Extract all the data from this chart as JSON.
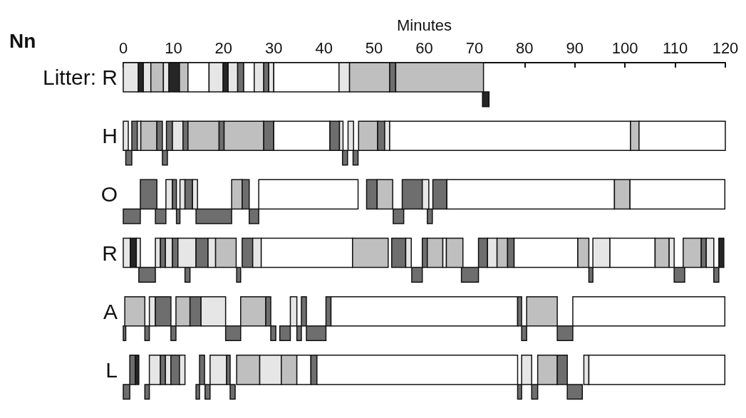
{
  "chart_data": {
    "type": "bar",
    "orientation": "horizontal",
    "title": "Nn",
    "xlabel": "Minutes",
    "categories": [
      "Litter: R",
      null,
      "H",
      null,
      "O",
      null,
      "R",
      null,
      "A",
      null,
      "L",
      null
    ],
    "xlim": [
      0,
      120
    ],
    "xticks": [
      0,
      10,
      20,
      30,
      40,
      50,
      60,
      70,
      80,
      90,
      100,
      110,
      120
    ],
    "series": [
      {
        "base": [
          0,
          71.6,
          0,
          0.5,
          3.4,
          0,
          0,
          3.1,
          0.3,
          0,
          1.3,
          0
        ],
        "values": [
          3,
          1.3,
          1,
          1.2,
          3.3,
          3.4,
          1.4,
          3.3,
          4,
          0.5,
          1.1,
          1.3
        ],
        "colors": [
          "#e6e6e6",
          "#262626",
          "#e6e6e6",
          "#6e6e6e",
          "#6e6e6e",
          "#6e6e6e",
          "#e6e6e6",
          "#6e6e6e",
          "#bfbfbf",
          "#6e6e6e",
          "#6e6e6e",
          "#6e6e6e"
        ]
      },
      {
        "base": [
          3,
          null,
          1.7,
          7.8,
          8.5,
          6.4,
          1.4,
          12.3,
          5.2,
          4.3,
          2.4,
          4.3
        ],
        "values": [
          1,
          null,
          1.1,
          1,
          1.3,
          2.1,
          1.2,
          1,
          1.2,
          0.9,
          0.7,
          0.9
        ],
        "colors": [
          "#262626",
          null,
          "#6e6e6e",
          "#6e6e6e",
          "#e6e6e6",
          "#6e6e6e",
          "#262626",
          "#6e6e6e",
          "#e6e6e6",
          "#6e6e6e",
          "#262626",
          "#6e6e6e"
        ]
      },
      {
        "base": [
          4,
          null,
          2.8,
          43.7,
          9.8,
          10.6,
          2.6,
          22.6,
          6.4,
          9.5,
          5.2,
          14.5
        ],
        "values": [
          1.5,
          null,
          0.7,
          1,
          0.8,
          0.7,
          0.8,
          0.8,
          3.1,
          1,
          2.2,
          0.7
        ],
        "colors": [
          "#e6e6e6",
          null,
          "#e6e6e6",
          "#6e6e6e",
          "#6e6e6e",
          "#6e6e6e",
          "#e6e6e6",
          "#6e6e6e",
          "#6e6e6e",
          "#6e6e6e",
          "#e6e6e6",
          "#6e6e6e"
        ]
      },
      {
        "base": [
          5.5,
          null,
          3.5,
          45.8,
          11.3,
          14.5,
          6.4,
          57.5,
          10.5,
          20.4,
          7.4,
          16.3
        ],
        "values": [
          2.5,
          null,
          3.2,
          1,
          1,
          7.1,
          1,
          2.1,
          2.8,
          3,
          1,
          1
        ],
        "colors": [
          "#bfbfbf",
          null,
          "#bfbfbf",
          "#6e6e6e",
          "#e6e6e6",
          "#6e6e6e",
          "#e6e6e6",
          "#6e6e6e",
          "#bfbfbf",
          "#6e6e6e",
          "#6e6e6e",
          "#6e6e6e"
        ]
      },
      {
        "base": [
          8,
          null,
          6.7,
          null,
          12.3,
          25.1,
          7.4,
          67.4,
          13.3,
          29.4,
          8.4,
          21.3
        ],
        "values": [
          1.1,
          null,
          1.1,
          null,
          1.5,
          1.9,
          1,
          3.4,
          2.2,
          1,
          1.1,
          1
        ],
        "colors": [
          "#e6e6e6",
          null,
          "#6e6e6e",
          null,
          "#6e6e6e",
          "#6e6e6e",
          "#6e6e6e",
          "#6e6e6e",
          "#6e6e6e",
          "#6e6e6e",
          "#e6e6e6",
          "#6e6e6e"
        ]
      },
      {
        "base": [
          9.1,
          null,
          8.6,
          null,
          13.8,
          53.8,
          8.4,
          92.8,
          15.5,
          31.2,
          9.5,
          78.6
        ],
        "values": [
          2.1,
          null,
          1.2,
          null,
          1,
          2.1,
          1.4,
          0.8,
          4.9,
          2.1,
          1.7,
          0.8
        ],
        "colors": [
          "#262626",
          null,
          "#6e6e6e",
          null,
          "#e6e6e6",
          "#6e6e6e",
          "#e6e6e6",
          "#6e6e6e",
          "#e6e6e6",
          "#6e6e6e",
          "#6e6e6e",
          "#6e6e6e"
        ]
      },
      {
        "base": [
          11.2,
          null,
          9.8,
          null,
          21.6,
          60.6,
          9.8,
          109.8,
          23.4,
          34.6,
          11.2,
          81.4
        ],
        "values": [
          1.7,
          null,
          2.1,
          null,
          2.1,
          1,
          1.1,
          2.1,
          5,
          0.9,
          1.1,
          1.2
        ],
        "colors": [
          "#bfbfbf",
          null,
          "#e6e6e6",
          null,
          "#bfbfbf",
          "#6e6e6e",
          "#6e6e6e",
          "#6e6e6e",
          "#bfbfbf",
          "#6e6e6e",
          "#e6e6e6",
          "#6e6e6e"
        ]
      },
      {
        "base": [
          12.9,
          null,
          11.9,
          null,
          23.7,
          null,
          10.9,
          117.7,
          28.4,
          36.5,
          15.2,
          88.5
        ],
        "values": [
          4.2,
          null,
          1,
          null,
          1.4,
          null,
          3.6,
          1,
          1,
          3.9,
          1,
          3
        ],
        "colors": [
          "#ffffff",
          null,
          "#6e6e6e",
          null,
          "#6e6e6e",
          null,
          "#e6e6e6",
          "#6e6e6e",
          "#6e6e6e",
          "#6e6e6e",
          "#6e6e6e",
          "#6e6e6e"
        ]
      },
      {
        "base": [
          17.1,
          null,
          12.9,
          null,
          27,
          null,
          14.5,
          null,
          33.3,
          79.4,
          17.3,
          null
        ],
        "values": [
          2.8,
          null,
          6.2,
          null,
          19.8,
          null,
          2.4,
          null,
          1.3,
          1,
          3.3,
          null
        ],
        "colors": [
          "#e6e6e6",
          null,
          "#bfbfbf",
          null,
          "#ffffff",
          null,
          "#6e6e6e",
          null,
          "#e6e6e6",
          "#6e6e6e",
          "#e6e6e6",
          null
        ]
      },
      {
        "base": [
          19.9,
          null,
          19.1,
          null,
          48.5,
          null,
          16.9,
          null,
          35.5,
          86.5,
          20.6,
          null
        ],
        "values": [
          1,
          null,
          1,
          null,
          2.1,
          null,
          1.5,
          null,
          1,
          3.1,
          0.7,
          null
        ],
        "colors": [
          "#262626",
          null,
          "#6e6e6e",
          null,
          "#6e6e6e",
          null,
          "#e6e6e6",
          null,
          "#6e6e6e",
          "#6e6e6e",
          "#6e6e6e",
          null
        ]
      },
      {
        "base": [
          20.9,
          null,
          20.1,
          null,
          50.6,
          null,
          18.4,
          null,
          40.4,
          null,
          22.6,
          null
        ],
        "values": [
          1.9,
          null,
          7.9,
          null,
          3.1,
          null,
          4.1,
          null,
          1,
          null,
          4.6,
          null
        ],
        "colors": [
          "#e6e6e6",
          null,
          "#bfbfbf",
          null,
          "#bfbfbf",
          null,
          "#bfbfbf",
          null,
          "#6e6e6e",
          null,
          "#bfbfbf",
          null
        ]
      },
      {
        "base": [
          22.8,
          null,
          28,
          null,
          55.6,
          null,
          23.7,
          null,
          41.4,
          null,
          27.2,
          null
        ],
        "values": [
          1.2,
          null,
          2,
          null,
          4,
          null,
          2.1,
          null,
          37.2,
          null,
          4.3,
          null
        ],
        "colors": [
          "#6e6e6e",
          null,
          "#6e6e6e",
          null,
          "#6e6e6e",
          null,
          "#6e6e6e",
          null,
          "#ffffff",
          null,
          "#e6e6e6",
          null
        ]
      },
      {
        "base": [
          24,
          null,
          30,
          null,
          59.6,
          null,
          25.8,
          null,
          78.6,
          null,
          31.5,
          null
        ],
        "values": [
          2.1,
          null,
          11.2,
          null,
          1.3,
          null,
          1.7,
          null,
          0.8,
          null,
          3.1,
          null
        ],
        "colors": [
          "#ffffff",
          null,
          "#ffffff",
          null,
          "#e6e6e6",
          null,
          "#e6e6e6",
          null,
          "#6e6e6e",
          null,
          "#bfbfbf",
          null
        ]
      },
      {
        "base": [
          26.1,
          null,
          41.2,
          null,
          61.7,
          null,
          27.5,
          null,
          80.4,
          null,
          34.6,
          null
        ],
        "values": [
          1.9,
          null,
          1.9,
          null,
          2.8,
          null,
          18.2,
          null,
          6.1,
          null,
          2.8,
          null
        ],
        "colors": [
          "#e6e6e6",
          null,
          "#6e6e6e",
          null,
          "#6e6e6e",
          null,
          "#ffffff",
          null,
          "#bfbfbf",
          null,
          "#ffffff",
          null
        ]
      },
      {
        "base": [
          28,
          null,
          43.1,
          null,
          64.5,
          null,
          45.7,
          null,
          89.6,
          null,
          37.4,
          null
        ],
        "values": [
          1,
          null,
          0.7,
          null,
          33.4,
          null,
          7.1,
          null,
          30.3,
          null,
          1.2,
          null
        ],
        "colors": [
          "#6e6e6e",
          null,
          "#e6e6e6",
          null,
          "#ffffff",
          null,
          "#bfbfbf",
          null,
          "#ffffff",
          null,
          "#6e6e6e",
          null
        ]
      },
      {
        "base": [
          29,
          null,
          44.8,
          null,
          97.9,
          null,
          53.5,
          null,
          null,
          null,
          38.6,
          null
        ],
        "values": [
          1,
          null,
          1.1,
          null,
          3.1,
          null,
          2.8,
          null,
          null,
          null,
          40,
          null
        ],
        "colors": [
          "#e6e6e6",
          null,
          "#e6e6e6",
          null,
          "#bfbfbf",
          null,
          "#6e6e6e",
          null,
          null,
          null,
          "#ffffff",
          null
        ]
      },
      {
        "base": [
          30,
          null,
          46.9,
          null,
          101,
          null,
          56.3,
          null,
          null,
          null,
          79.4,
          null
        ],
        "values": [
          13,
          null,
          3.8,
          null,
          18.9,
          null,
          1.1,
          null,
          null,
          null,
          2,
          null
        ],
        "colors": [
          "#ffffff",
          null,
          "#bfbfbf",
          null,
          "#ffffff",
          null,
          "#e6e6e6",
          null,
          null,
          null,
          "#e6e6e6",
          null
        ]
      },
      {
        "base": [
          43,
          null,
          50.7,
          null,
          null,
          null,
          59.6,
          null,
          null,
          null,
          82.6,
          null
        ],
        "values": [
          2.1,
          null,
          1.4,
          null,
          null,
          null,
          1,
          null,
          null,
          null,
          3.9,
          null
        ],
        "colors": [
          "#e6e6e6",
          null,
          "#6e6e6e",
          null,
          null,
          null,
          "#6e6e6e",
          null,
          null,
          null,
          "#bfbfbf",
          null
        ]
      },
      {
        "base": [
          45.1,
          null,
          52.1,
          null,
          null,
          null,
          60.6,
          null,
          null,
          null,
          86.5,
          null
        ],
        "values": [
          8,
          null,
          1,
          null,
          null,
          null,
          3.1,
          null,
          null,
          null,
          2,
          null
        ],
        "colors": [
          "#bfbfbf",
          null,
          "#e6e6e6",
          null,
          null,
          null,
          "#bfbfbf",
          null,
          null,
          null,
          "#6e6e6e",
          null
        ]
      },
      {
        "base": [
          53.1,
          null,
          53.1,
          null,
          null,
          null,
          63.7,
          null,
          null,
          null,
          91.8,
          null
        ],
        "values": [
          1.2,
          null,
          48,
          null,
          null,
          null,
          0.7,
          null,
          null,
          null,
          1,
          null
        ],
        "colors": [
          "#6e6e6e",
          null,
          "#ffffff",
          null,
          null,
          null,
          "#ffffff",
          null,
          null,
          null,
          "#e6e6e6",
          null
        ]
      },
      {
        "base": [
          54.3,
          null,
          101.1,
          null,
          null,
          null,
          64.4,
          null,
          null,
          null,
          92.8,
          null
        ],
        "values": [
          17.5,
          null,
          1.7,
          null,
          null,
          null,
          3.3,
          null,
          null,
          null,
          27.1,
          null
        ],
        "colors": [
          "#bfbfbf",
          null,
          "#bfbfbf",
          null,
          null,
          null,
          "#bfbfbf",
          null,
          null,
          null,
          "#ffffff",
          null
        ]
      },
      {
        "base": [
          null,
          null,
          102.8,
          null,
          null,
          null,
          70.8,
          null,
          null,
          null,
          null,
          null
        ],
        "values": [
          null,
          null,
          17.2,
          null,
          null,
          null,
          1.8,
          null,
          null,
          null,
          null,
          null
        ],
        "colors": [
          null,
          null,
          "#ffffff",
          null,
          null,
          null,
          "#6e6e6e",
          null,
          null,
          null,
          null,
          null
        ]
      },
      {
        "base": [
          null,
          null,
          null,
          null,
          null,
          null,
          72.6,
          null,
          null,
          null,
          null,
          null
        ],
        "values": [
          null,
          null,
          null,
          null,
          null,
          null,
          1.9,
          null,
          null,
          null,
          null,
          null
        ],
        "colors": [
          null,
          null,
          null,
          null,
          null,
          null,
          "#e6e6e6",
          null,
          null,
          null,
          null,
          null
        ]
      },
      {
        "base": [
          null,
          null,
          null,
          null,
          null,
          null,
          74.5,
          null,
          null,
          null,
          null,
          null
        ],
        "values": [
          null,
          null,
          null,
          null,
          null,
          null,
          2.1,
          null,
          null,
          null,
          null,
          null
        ],
        "colors": [
          null,
          null,
          null,
          null,
          null,
          null,
          "#bfbfbf",
          null,
          null,
          null,
          null,
          null
        ]
      },
      {
        "base": [
          null,
          null,
          null,
          null,
          null,
          null,
          76.6,
          null,
          null,
          null,
          null,
          null
        ],
        "values": [
          null,
          null,
          null,
          null,
          null,
          null,
          1.3,
          null,
          null,
          null,
          null,
          null
        ],
        "colors": [
          null,
          null,
          null,
          null,
          null,
          null,
          "#6e6e6e",
          null,
          null,
          null,
          null,
          null
        ]
      },
      {
        "base": [
          null,
          null,
          null,
          null,
          null,
          null,
          77.9,
          null,
          null,
          null,
          null,
          null
        ],
        "values": [
          null,
          null,
          null,
          null,
          null,
          null,
          12.7,
          null,
          null,
          null,
          null,
          null
        ],
        "colors": [
          null,
          null,
          null,
          null,
          null,
          null,
          "#ffffff",
          null,
          null,
          null,
          null,
          null
        ]
      },
      {
        "base": [
          null,
          null,
          null,
          null,
          null,
          null,
          90.6,
          null,
          null,
          null,
          null,
          null
        ],
        "values": [
          null,
          null,
          null,
          null,
          null,
          null,
          2.2,
          null,
          null,
          null,
          null,
          null
        ],
        "colors": [
          null,
          null,
          null,
          null,
          null,
          null,
          "#bfbfbf",
          null,
          null,
          null,
          null,
          null
        ]
      },
      {
        "base": [
          null,
          null,
          null,
          null,
          null,
          null,
          93.6,
          null,
          null,
          null,
          null,
          null
        ],
        "values": [
          null,
          null,
          null,
          null,
          null,
          null,
          3.4,
          null,
          null,
          null,
          null,
          null
        ],
        "colors": [
          null,
          null,
          null,
          null,
          null,
          null,
          "#e6e6e6",
          null,
          null,
          null,
          null,
          null
        ]
      },
      {
        "base": [
          null,
          null,
          null,
          null,
          null,
          null,
          97,
          null,
          null,
          null,
          null,
          null
        ],
        "values": [
          null,
          null,
          null,
          null,
          null,
          null,
          9,
          null,
          null,
          null,
          null,
          null
        ],
        "colors": [
          null,
          null,
          null,
          null,
          null,
          null,
          "#ffffff",
          null,
          null,
          null,
          null,
          null
        ]
      },
      {
        "base": [
          null,
          null,
          null,
          null,
          null,
          null,
          106,
          null,
          null,
          null,
          null,
          null
        ],
        "values": [
          null,
          null,
          null,
          null,
          null,
          null,
          2.8,
          null,
          null,
          null,
          null,
          null
        ],
        "colors": [
          null,
          null,
          null,
          null,
          null,
          null,
          "#bfbfbf",
          null,
          null,
          null,
          null,
          null
        ]
      },
      {
        "base": [
          null,
          null,
          null,
          null,
          null,
          null,
          108.8,
          null,
          null,
          null,
          null,
          null
        ],
        "values": [
          null,
          null,
          null,
          null,
          null,
          null,
          1,
          null,
          null,
          null,
          null,
          null
        ],
        "colors": [
          null,
          null,
          null,
          null,
          null,
          null,
          "#e6e6e6",
          null,
          null,
          null,
          null,
          null
        ]
      },
      {
        "base": [
          null,
          null,
          null,
          null,
          null,
          null,
          111.6,
          null,
          null,
          null,
          null,
          null
        ],
        "values": [
          null,
          null,
          null,
          null,
          null,
          null,
          3.6,
          null,
          null,
          null,
          null,
          null
        ],
        "colors": [
          null,
          null,
          null,
          null,
          null,
          null,
          "#bfbfbf",
          null,
          null,
          null,
          null,
          null
        ]
      },
      {
        "base": [
          null,
          null,
          null,
          null,
          null,
          null,
          115.2,
          null,
          null,
          null,
          null,
          null
        ],
        "values": [
          null,
          null,
          null,
          null,
          null,
          null,
          1,
          null,
          null,
          null,
          null,
          null
        ],
        "colors": [
          null,
          null,
          null,
          null,
          null,
          null,
          "#6e6e6e",
          null,
          null,
          null,
          null,
          null
        ]
      },
      {
        "base": [
          null,
          null,
          null,
          null,
          null,
          null,
          116.2,
          null,
          null,
          null,
          null,
          null
        ],
        "values": [
          null,
          null,
          null,
          null,
          null,
          null,
          1.5,
          null,
          null,
          null,
          null,
          null
        ],
        "colors": [
          null,
          null,
          null,
          null,
          null,
          null,
          "#e6e6e6",
          null,
          null,
          null,
          null,
          null
        ]
      },
      {
        "base": [
          null,
          null,
          null,
          null,
          null,
          null,
          118.7,
          null,
          null,
          null,
          null,
          null
        ],
        "values": [
          null,
          null,
          null,
          null,
          null,
          null,
          1,
          null,
          null,
          null,
          null,
          null
        ],
        "colors": [
          null,
          null,
          null,
          null,
          null,
          null,
          "#262626",
          null,
          null,
          null,
          null,
          null
        ]
      }
    ]
  }
}
